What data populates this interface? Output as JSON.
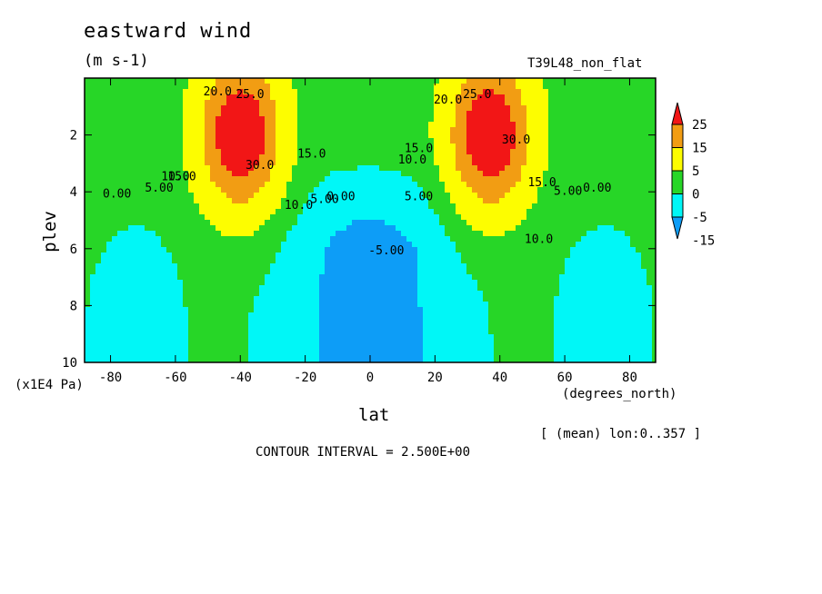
{
  "header": {
    "title": "eastward wind",
    "units": "(m s-1)",
    "experiment": "T39L48_non_flat"
  },
  "footer": {
    "contour_interval": "CONTOUR INTERVAL = 2.500E+00",
    "averaging_note": "[ (mean) lon:0..357 ]"
  },
  "colors": {
    "red": "#f21616",
    "orange": "#f29d13",
    "yellow": "#fdfd00",
    "green": "#27d627",
    "cyan": "#00f7f7",
    "blue": "#0d9df7"
  },
  "chart_data": {
    "type": "contour",
    "title": "eastward wind",
    "units": "(m s-1)",
    "xlabel": "lat",
    "xlabel_units": "(degrees_north)",
    "ylabel": "plev",
    "ylabel_units": "(x1E4 Pa)",
    "xlim": [
      -88,
      88
    ],
    "ylim": [
      10,
      0
    ],
    "x_ticks": [
      -80,
      -60,
      -40,
      -20,
      0,
      20,
      40,
      60,
      80
    ],
    "x_tick_labels": [
      "-80",
      "-60",
      "-40",
      "-20",
      "0",
      "20",
      "40",
      "60",
      "80"
    ],
    "y_ticks": [
      2,
      4,
      6,
      8,
      10
    ],
    "y_tick_labels": [
      "2",
      "4",
      "6",
      "8",
      "10"
    ],
    "contour_interval": 2.5,
    "colorbar": {
      "levels": [
        -15,
        -5,
        0,
        5,
        15,
        25
      ],
      "labels": [
        "25",
        "15",
        "5",
        "0",
        "-5",
        "-15"
      ]
    },
    "contour_labels": [
      {
        "text": "0.00",
        "lat": -78,
        "plev": 4.2
      },
      {
        "text": "5.00",
        "lat": -65,
        "plev": 4.0
      },
      {
        "text": "10.0",
        "lat": -60,
        "plev": 3.6
      },
      {
        "text": "15.0",
        "lat": -58,
        "plev": 3.6
      },
      {
        "text": "20.0",
        "lat": -47,
        "plev": 0.6
      },
      {
        "text": "25.0",
        "lat": -37,
        "plev": 0.7
      },
      {
        "text": "30.0",
        "lat": -34,
        "plev": 3.2
      },
      {
        "text": "15.0",
        "lat": -18,
        "plev": 2.8
      },
      {
        "text": "10.0",
        "lat": -22,
        "plev": 4.6
      },
      {
        "text": "5.00",
        "lat": -14,
        "plev": 4.4
      },
      {
        "text": "0.00",
        "lat": -9,
        "plev": 4.3
      },
      {
        "text": "-5.00",
        "lat": 5,
        "plev": 6.2
      },
      {
        "text": "10.0",
        "lat": 13,
        "plev": 3.0
      },
      {
        "text": "15.0",
        "lat": 15,
        "plev": 2.6
      },
      {
        "text": "5.00",
        "lat": 15,
        "plev": 4.3
      },
      {
        "text": "20.0",
        "lat": 24,
        "plev": 0.9
      },
      {
        "text": "25.0",
        "lat": 33,
        "plev": 0.7
      },
      {
        "text": "30.0",
        "lat": 45,
        "plev": 2.3
      },
      {
        "text": "15.0",
        "lat": 53,
        "plev": 3.8
      },
      {
        "text": "10.0",
        "lat": 52,
        "plev": 5.8
      },
      {
        "text": "5.00",
        "lat": 61,
        "plev": 4.1
      },
      {
        "text": "0.00",
        "lat": 70,
        "plev": 4.0
      }
    ],
    "jets": [
      {
        "name": "",
        "lat": -40,
        "plev": 2.0,
        "max_approx": 35
      },
      {
        "name": "",
        "lat": 37,
        "plev": 2.0,
        "max_approx": 35
      }
    ]
  }
}
